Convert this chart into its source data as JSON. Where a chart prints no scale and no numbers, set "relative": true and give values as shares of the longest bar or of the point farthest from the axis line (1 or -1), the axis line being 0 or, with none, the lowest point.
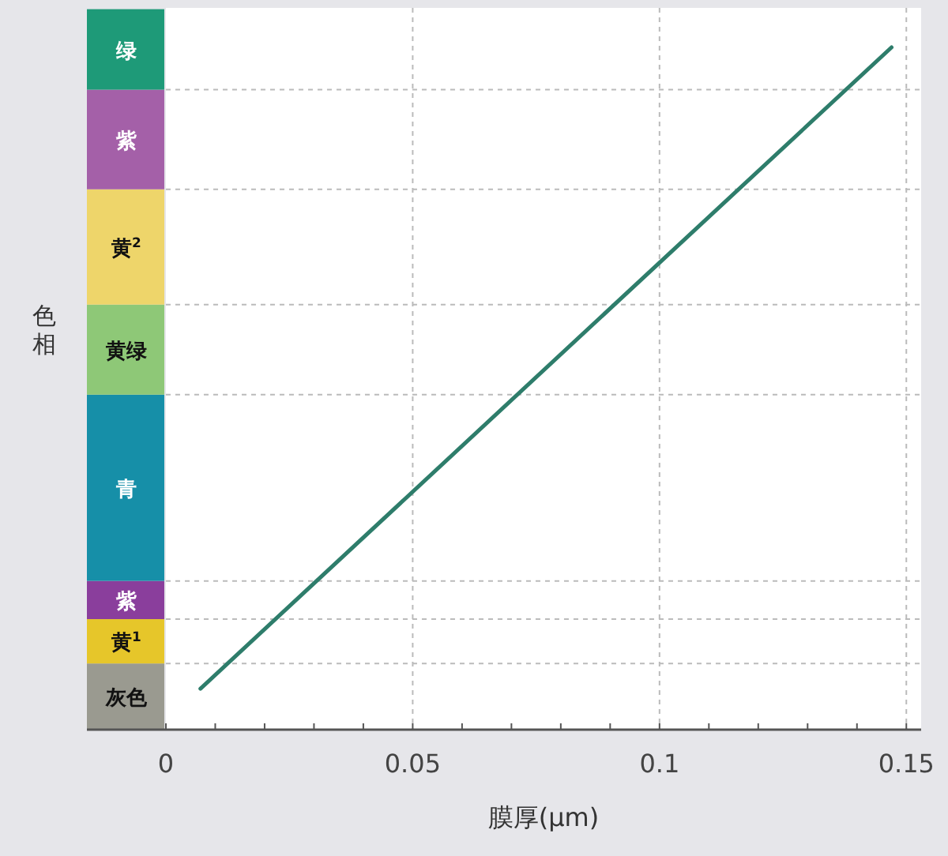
{
  "chart_data": {
    "type": "line",
    "relative": true,
    "xlabel": "膜厚(μm)",
    "ylabel": "色相",
    "x": [
      0.007,
      0.147
    ],
    "series": [
      {
        "color": "#2e7d6b",
        "values": [
          0.06,
          1
        ]
      }
    ],
    "xlim": [
      -0.016,
      0.153
    ],
    "xticks": [
      0,
      {
        "value": 0.01,
        "label": null
      },
      {
        "value": 0.02,
        "label": null
      },
      {
        "value": 0.03,
        "label": null
      },
      {
        "value": 0.04,
        "label": null
      },
      0.05,
      {
        "value": 0.06,
        "label": null
      },
      {
        "value": 0.07,
        "label": null
      },
      {
        "value": 0.08,
        "label": null
      },
      {
        "value": 0.09,
        "label": null
      },
      0.1,
      {
        "value": 0.11,
        "label": null
      },
      {
        "value": 0.12,
        "label": null
      },
      {
        "value": 0.13,
        "label": null
      },
      {
        "value": 0.14,
        "label": null
      },
      0.15
    ],
    "grid": "x",
    "bands": [
      {
        "axis": "y",
        "from": 0,
        "to": 0.097,
        "label": "灰色",
        "color": "#9a9a90"
      },
      {
        "axis": "y",
        "from": 0.097,
        "to": 0.162,
        "label": "黄$^{1}$",
        "color": "#e6c62a"
      },
      {
        "axis": "y",
        "from": 0.162,
        "to": 0.218,
        "label": "紫",
        "color": "#8a3e9c"
      },
      {
        "axis": "y",
        "from": 0.218,
        "to": 0.491,
        "label": "青",
        "color": "#168fa8"
      },
      {
        "axis": "y",
        "from": 0.491,
        "to": 0.623,
        "label": "黄绿",
        "color": "#8ec877"
      },
      {
        "axis": "y",
        "from": 0.623,
        "to": 0.792,
        "label": "黄$^{2}$",
        "color": "#eed56a"
      },
      {
        "axis": "y",
        "from": 0.792,
        "to": 0.938,
        "label": "紫",
        "color": "#a460a8"
      },
      {
        "axis": "y",
        "from": 0.938,
        "to": 1.056,
        "label": "绿",
        "color": "#1e9a78"
      }
    ]
  }
}
